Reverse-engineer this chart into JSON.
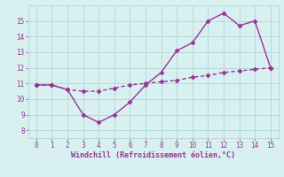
{
  "x": [
    0,
    1,
    2,
    3,
    4,
    5,
    6,
    7,
    8,
    9,
    10,
    11,
    12,
    13,
    14,
    15
  ],
  "temp": [
    10.9,
    10.9,
    10.6,
    9.0,
    8.5,
    9.0,
    9.8,
    10.9,
    11.7,
    13.1,
    13.6,
    15.0,
    15.5,
    14.7,
    15.0,
    12.0
  ],
  "windchill": [
    10.9,
    10.9,
    10.6,
    10.5,
    10.5,
    10.7,
    10.9,
    11.0,
    11.1,
    11.2,
    11.4,
    11.5,
    11.7,
    11.8,
    11.9,
    12.0
  ],
  "line_color": "#993399",
  "bg_color": "#d8f0f0",
  "grid_color": "#b8d8d8",
  "xlabel": "Windchill (Refroidissement éolien,°C)",
  "xlabel_color": "#993399",
  "tick_color": "#993399",
  "xlim": [
    -0.5,
    15.5
  ],
  "ylim": [
    7.5,
    16.0
  ],
  "yticks": [
    8,
    9,
    10,
    11,
    12,
    13,
    14,
    15
  ],
  "xticks": [
    0,
    1,
    2,
    3,
    4,
    5,
    6,
    7,
    8,
    9,
    10,
    11,
    12,
    13,
    14,
    15
  ],
  "marker": "D",
  "marker_size": 2.5,
  "line_width": 1.0
}
